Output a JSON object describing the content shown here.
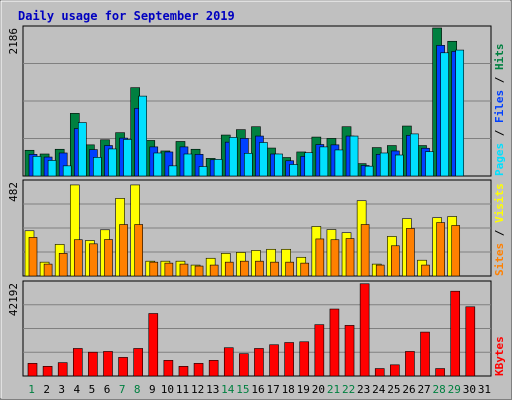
{
  "title": "Daily usage for September 2019",
  "colors": {
    "background": "#c0c0c0",
    "title": "#0000c0",
    "hits": "#008040",
    "files": "#0040ff",
    "pages": "#00e0ff",
    "visits": "#ffff00",
    "sites": "#ff8000",
    "kbytes": "#ff0000",
    "weekend_label": "#008040",
    "weekday_label": "#000000"
  },
  "chart_data": [
    {
      "type": "bar",
      "panel": "hits-files-pages",
      "ymax_label": "2186",
      "ylim": [
        0,
        2186
      ],
      "right_label": [
        "Pages",
        "Files",
        "Hits"
      ],
      "categories": [
        "1",
        "2",
        "3",
        "4",
        "5",
        "6",
        "7",
        "8",
        "9",
        "10",
        "11",
        "12",
        "13",
        "14",
        "15",
        "16",
        "17",
        "18",
        "19",
        "20",
        "21",
        "22",
        "23",
        "24",
        "25",
        "26",
        "27",
        "28",
        "29",
        "30",
        "31"
      ],
      "series": [
        {
          "name": "Hits",
          "values": [
            380,
            325,
            395,
            925,
            460,
            535,
            640,
            1305,
            525,
            370,
            510,
            395,
            260,
            605,
            685,
            728,
            413,
            273,
            355,
            575,
            555,
            728,
            183,
            420,
            450,
            738,
            450,
            2186,
            1990,
            0,
            0
          ]
        },
        {
          "name": "Files",
          "values": [
            320,
            280,
            340,
            700,
            390,
            450,
            560,
            1000,
            430,
            355,
            430,
            320,
            240,
            500,
            555,
            590,
            325,
            225,
            290,
            465,
            460,
            590,
            155,
            320,
            370,
            600,
            410,
            1930,
            1840,
            0,
            0
          ]
        },
        {
          "name": "Pages",
          "values": [
            290,
            230,
            150,
            790,
            275,
            400,
            540,
            1180,
            340,
            150,
            325,
            140,
            245,
            570,
            335,
            495,
            325,
            170,
            345,
            430,
            385,
            590,
            145,
            340,
            310,
            622,
            360,
            1820,
            1860,
            0,
            0
          ]
        }
      ]
    },
    {
      "type": "bar",
      "panel": "visits-sites",
      "ymax_label": "482",
      "ylim": [
        0,
        482
      ],
      "right_label": [
        "Sites",
        "Visits"
      ],
      "categories": [
        "1",
        "2",
        "3",
        "4",
        "5",
        "6",
        "7",
        "8",
        "9",
        "10",
        "11",
        "12",
        "13",
        "14",
        "15",
        "16",
        "17",
        "18",
        "19",
        "20",
        "21",
        "22",
        "23",
        "24",
        "25",
        "26",
        "27",
        "28",
        "29",
        "30",
        "31"
      ],
      "series": [
        {
          "name": "Visits",
          "values": [
            232,
            71,
            162,
            467,
            182,
            237,
            398,
            467,
            76,
            76,
            76,
            56,
            91,
            116,
            121,
            131,
            137,
            137,
            96,
            254,
            238,
            222,
            386,
            61,
            203,
            294,
            81,
            299,
            305,
            0,
            0
          ]
        },
        {
          "name": "Sites",
          "values": [
            198,
            61,
            116,
            186,
            165,
            187,
            264,
            264,
            71,
            66,
            61,
            51,
            56,
            71,
            76,
            76,
            71,
            71,
            66,
            190,
            186,
            192,
            264,
            56,
            155,
            244,
            56,
            274,
            259,
            0,
            0
          ]
        }
      ]
    },
    {
      "type": "bar",
      "panel": "kbytes",
      "ymax_label": "42192",
      "ylim": [
        0,
        42192
      ],
      "right_label": [
        "KBytes"
      ],
      "categories": [
        "1",
        "2",
        "3",
        "4",
        "5",
        "6",
        "7",
        "8",
        "9",
        "10",
        "11",
        "12",
        "13",
        "14",
        "15",
        "16",
        "17",
        "18",
        "19",
        "20",
        "21",
        "22",
        "23",
        "24",
        "25",
        "26",
        "27",
        "28",
        "29",
        "30",
        "31"
      ],
      "series": [
        {
          "name": "KBytes",
          "values": [
            5740,
            4390,
            6070,
            12490,
            10800,
            11140,
            8440,
            12490,
            28350,
            7100,
            4390,
            5740,
            7100,
            12830,
            10120,
            12490,
            14180,
            15190,
            15530,
            23290,
            30380,
            22960,
            41850,
            3380,
            5070,
            11140,
            19920,
            3380,
            38470,
            31400,
            0
          ]
        }
      ],
      "weekend_days": [
        "1",
        "7",
        "8",
        "14",
        "15",
        "21",
        "22",
        "28",
        "29"
      ]
    }
  ]
}
